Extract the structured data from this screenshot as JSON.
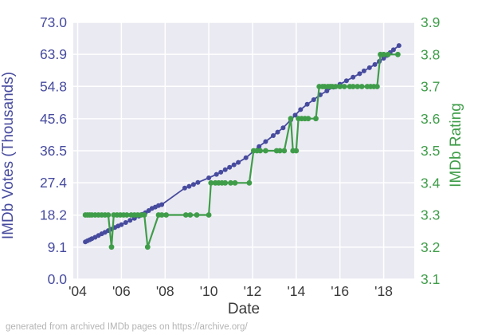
{
  "figure": {
    "caption": "generated from archived IMDb pages on https://archive.org/"
  },
  "colors": {
    "votes_series": "#474b9e",
    "rating_series": "#3f9d49",
    "plot_background": "#eaeaf2",
    "gridline": "#ffffff",
    "x_tick_text": "#3a3a3a",
    "caption_text": "#b4b4b4"
  },
  "chart_data": {
    "type": "line",
    "title": "",
    "xlabel": "Date",
    "grid": true,
    "legend": "none",
    "x_tick_labels": [
      "'04",
      "'06",
      "'08",
      "'10",
      "'12",
      "'14",
      "'16",
      "'18"
    ],
    "x_tick_years": [
      2004,
      2006,
      2008,
      2010,
      2012,
      2014,
      2016,
      2018
    ],
    "xlim": [
      2003.8,
      2019.4
    ],
    "left_axis": {
      "label": "IMDb Votes (Thousands)",
      "ticks": [
        0.0,
        9.1,
        18.2,
        27.4,
        36.5,
        45.6,
        54.8,
        63.9,
        73.0
      ],
      "lim": [
        0,
        73
      ]
    },
    "right_axis": {
      "label": "IMDb Rating",
      "ticks": [
        3.1,
        3.2,
        3.3,
        3.4,
        3.5,
        3.6,
        3.7,
        3.8,
        3.9
      ],
      "lim": [
        3.1,
        3.9
      ]
    },
    "series": [
      {
        "name": "IMDb Votes (Thousands)",
        "axis": "left",
        "color": "#474b9e",
        "marker_radius": 3.0,
        "line_width": 1.8,
        "points": [
          [
            2004.35,
            10.6
          ],
          [
            2004.45,
            10.9
          ],
          [
            2004.55,
            11.2
          ],
          [
            2004.65,
            11.5
          ],
          [
            2004.8,
            11.9
          ],
          [
            2004.95,
            12.4
          ],
          [
            2005.1,
            12.9
          ],
          [
            2005.25,
            13.3
          ],
          [
            2005.4,
            13.8
          ],
          [
            2005.55,
            14.2
          ],
          [
            2005.7,
            14.7
          ],
          [
            2005.85,
            15.1
          ],
          [
            2006.0,
            15.5
          ],
          [
            2006.2,
            16.1
          ],
          [
            2006.4,
            16.7
          ],
          [
            2006.6,
            17.3
          ],
          [
            2006.8,
            17.9
          ],
          [
            2006.95,
            18.4
          ],
          [
            2007.1,
            18.9
          ],
          [
            2007.25,
            19.5
          ],
          [
            2007.4,
            20.1
          ],
          [
            2007.55,
            20.5
          ],
          [
            2007.7,
            20.9
          ],
          [
            2007.85,
            21.2
          ],
          [
            2008.9,
            25.9
          ],
          [
            2009.1,
            26.4
          ],
          [
            2009.3,
            26.9
          ],
          [
            2009.5,
            27.5
          ],
          [
            2010.0,
            28.8
          ],
          [
            2010.35,
            29.8
          ],
          [
            2010.55,
            30.4
          ],
          [
            2010.75,
            31.1
          ],
          [
            2010.95,
            31.8
          ],
          [
            2011.15,
            32.5
          ],
          [
            2011.35,
            33.2
          ],
          [
            2011.7,
            34.5
          ],
          [
            2012.3,
            37.7
          ],
          [
            2012.6,
            39.1
          ],
          [
            2012.95,
            40.8
          ],
          [
            2013.15,
            41.8
          ],
          [
            2013.4,
            43.0
          ],
          [
            2013.75,
            45.3
          ],
          [
            2013.95,
            46.6
          ],
          [
            2014.2,
            48.2
          ],
          [
            2014.5,
            49.7
          ],
          [
            2014.8,
            51.0
          ],
          [
            2015.1,
            52.4
          ],
          [
            2015.4,
            53.5
          ],
          [
            2015.7,
            54.6
          ],
          [
            2016.0,
            55.4
          ],
          [
            2016.3,
            56.4
          ],
          [
            2016.6,
            57.4
          ],
          [
            2016.9,
            58.4
          ],
          [
            2017.1,
            59.2
          ],
          [
            2017.35,
            60.1
          ],
          [
            2017.6,
            61.0
          ],
          [
            2017.8,
            61.9
          ],
          [
            2018.0,
            62.8
          ],
          [
            2018.15,
            63.6
          ],
          [
            2018.3,
            64.4
          ],
          [
            2018.45,
            65.2
          ],
          [
            2018.7,
            66.4
          ]
        ]
      },
      {
        "name": "IMDb Rating",
        "axis": "right",
        "color": "#3f9d49",
        "marker_radius": 3.4,
        "line_width": 2.2,
        "points": [
          [
            2004.35,
            3.3
          ],
          [
            2004.45,
            3.3
          ],
          [
            2004.55,
            3.3
          ],
          [
            2004.65,
            3.3
          ],
          [
            2004.8,
            3.3
          ],
          [
            2004.95,
            3.3
          ],
          [
            2005.1,
            3.3
          ],
          [
            2005.25,
            3.3
          ],
          [
            2005.4,
            3.3
          ],
          [
            2005.55,
            3.2
          ],
          [
            2005.65,
            3.3
          ],
          [
            2005.8,
            3.3
          ],
          [
            2005.95,
            3.3
          ],
          [
            2006.1,
            3.3
          ],
          [
            2006.25,
            3.3
          ],
          [
            2006.45,
            3.3
          ],
          [
            2006.6,
            3.3
          ],
          [
            2006.75,
            3.3
          ],
          [
            2006.9,
            3.3
          ],
          [
            2007.05,
            3.3
          ],
          [
            2007.2,
            3.2
          ],
          [
            2007.7,
            3.3
          ],
          [
            2007.85,
            3.3
          ],
          [
            2008.05,
            3.3
          ],
          [
            2008.95,
            3.3
          ],
          [
            2009.15,
            3.3
          ],
          [
            2009.45,
            3.3
          ],
          [
            2010.0,
            3.3
          ],
          [
            2010.1,
            3.4
          ],
          [
            2010.3,
            3.4
          ],
          [
            2010.45,
            3.4
          ],
          [
            2010.6,
            3.4
          ],
          [
            2010.75,
            3.4
          ],
          [
            2011.0,
            3.4
          ],
          [
            2011.2,
            3.4
          ],
          [
            2011.85,
            3.4
          ],
          [
            2012.05,
            3.5
          ],
          [
            2012.2,
            3.5
          ],
          [
            2012.35,
            3.5
          ],
          [
            2012.6,
            3.5
          ],
          [
            2013.1,
            3.5
          ],
          [
            2013.25,
            3.5
          ],
          [
            2013.45,
            3.5
          ],
          [
            2013.75,
            3.6
          ],
          [
            2013.85,
            3.5
          ],
          [
            2014.0,
            3.5
          ],
          [
            2014.1,
            3.6
          ],
          [
            2014.25,
            3.6
          ],
          [
            2014.4,
            3.6
          ],
          [
            2014.55,
            3.6
          ],
          [
            2014.9,
            3.6
          ],
          [
            2015.05,
            3.7
          ],
          [
            2015.2,
            3.7
          ],
          [
            2015.3,
            3.7
          ],
          [
            2015.45,
            3.7
          ],
          [
            2015.55,
            3.7
          ],
          [
            2015.65,
            3.7
          ],
          [
            2015.8,
            3.7
          ],
          [
            2016.0,
            3.7
          ],
          [
            2016.2,
            3.7
          ],
          [
            2016.45,
            3.7
          ],
          [
            2016.6,
            3.7
          ],
          [
            2016.8,
            3.7
          ],
          [
            2017.0,
            3.7
          ],
          [
            2017.25,
            3.7
          ],
          [
            2017.4,
            3.7
          ],
          [
            2017.55,
            3.7
          ],
          [
            2017.7,
            3.7
          ],
          [
            2017.85,
            3.8
          ],
          [
            2018.0,
            3.8
          ],
          [
            2018.2,
            3.8
          ],
          [
            2018.65,
            3.8
          ]
        ]
      }
    ]
  }
}
